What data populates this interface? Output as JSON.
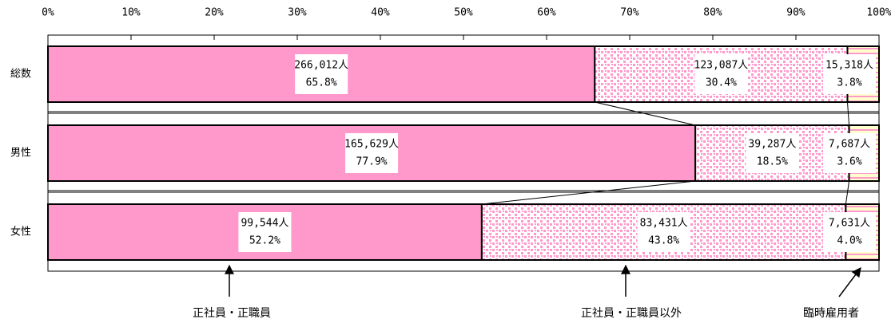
{
  "chart_data": {
    "type": "stacked-bar-horizontal-100",
    "categories": [
      "総数",
      "男性",
      "女性"
    ],
    "xlim": [
      0,
      100
    ],
    "xticks": [
      {
        "value": 0,
        "label": "0%"
      },
      {
        "value": 10,
        "label": "10%"
      },
      {
        "value": 20,
        "label": "20%"
      },
      {
        "value": 30,
        "label": "30%"
      },
      {
        "value": 40,
        "label": "40%"
      },
      {
        "value": 50,
        "label": "50%"
      },
      {
        "value": 60,
        "label": "60%"
      },
      {
        "value": 70,
        "label": "70%"
      },
      {
        "value": 80,
        "label": "80%"
      },
      {
        "value": 90,
        "label": "90%"
      },
      {
        "value": 100,
        "label": "100%"
      }
    ],
    "series": [
      {
        "name": "正社員・正職員",
        "color": "#ff99cc",
        "fill": "solid",
        "values": [
          65.8,
          77.9,
          52.2
        ],
        "value_labels": [
          "65.8%",
          "77.9%",
          "52.2%"
        ],
        "count_labels": [
          "266,012人",
          "165,629人",
          "99,544人"
        ]
      },
      {
        "name": "正社員・正職員以外",
        "color": "#ff99cc",
        "fill": "dots",
        "values": [
          30.4,
          18.5,
          43.8
        ],
        "value_labels": [
          "30.4%",
          "18.5%",
          "43.8%"
        ],
        "count_labels": [
          "123,087人",
          "39,287人",
          "83,431人"
        ]
      },
      {
        "name": "臨時雇用者",
        "color": "#ff99cc",
        "fill": "stripes",
        "values": [
          3.8,
          3.6,
          4.0
        ],
        "value_labels": [
          "3.8%",
          "3.6%",
          "4.0%"
        ],
        "count_labels": [
          "15,318人",
          "7,687人",
          "7,631人"
        ]
      }
    ]
  }
}
